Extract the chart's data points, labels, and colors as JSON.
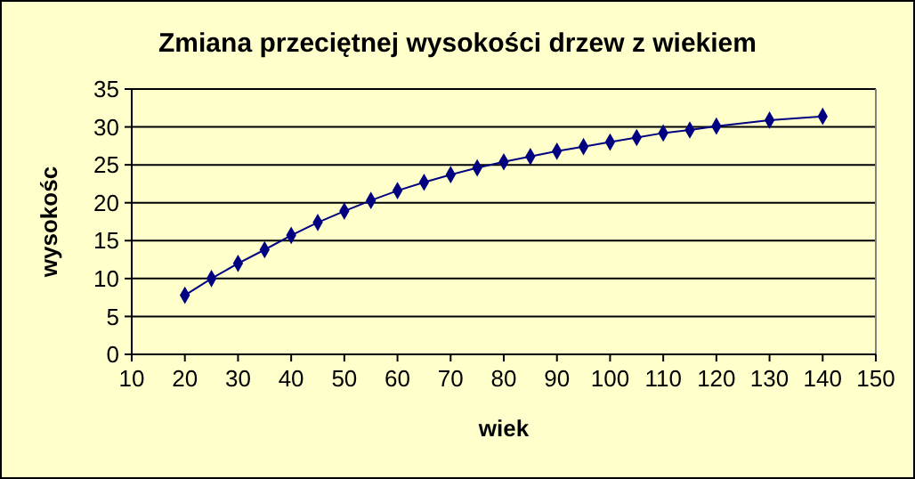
{
  "chart_data": {
    "type": "line",
    "title": "Zmiana przeciętnej wysokości drzew z wiekiem",
    "xlabel": "wiek",
    "ylabel": "wysokośc",
    "x": [
      20,
      25,
      30,
      35,
      40,
      45,
      50,
      55,
      60,
      65,
      70,
      75,
      80,
      85,
      90,
      95,
      100,
      105,
      110,
      115,
      120,
      130,
      140
    ],
    "series": [
      {
        "color": "#000080",
        "values": [
          7.8,
          10,
          12,
          13.8,
          15.7,
          17.4,
          18.9,
          20.3,
          21.6,
          22.7,
          23.7,
          24.6,
          25.4,
          26.1,
          26.8,
          27.4,
          28,
          28.6,
          29.2,
          29.6,
          30.1,
          30.9,
          31.4
        ]
      }
    ],
    "xlim": [
      10,
      150
    ],
    "xticks": [
      10,
      20,
      30,
      40,
      50,
      60,
      70,
      80,
      90,
      100,
      110,
      120,
      130,
      140,
      150
    ],
    "ylim": [
      0,
      35
    ],
    "yticks": [
      0,
      5,
      10,
      15,
      20,
      25,
      30,
      35
    ],
    "grid": "y",
    "marker": "diamond",
    "line_style": "solid"
  }
}
